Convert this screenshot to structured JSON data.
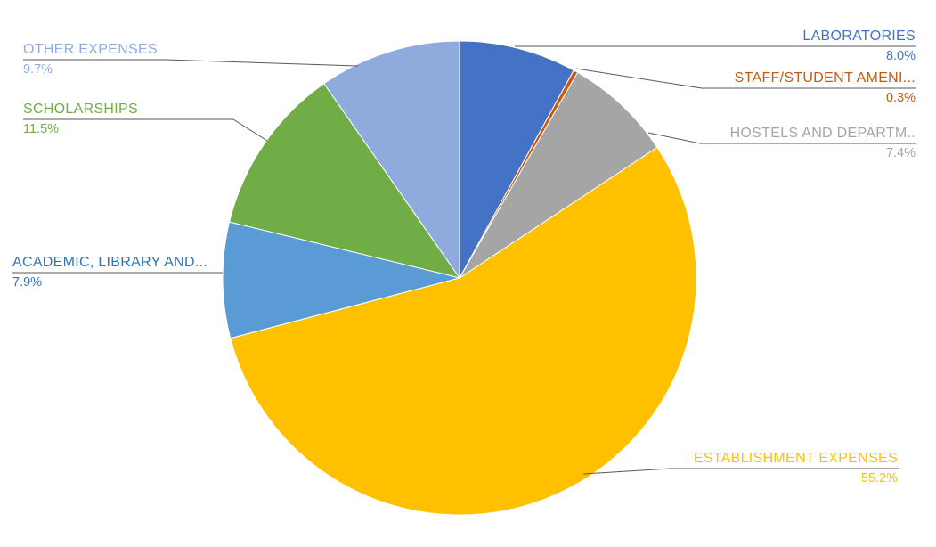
{
  "chart_data": {
    "type": "pie",
    "title": "",
    "legend_position": "none",
    "start_angle_deg": 0,
    "direction": "clockwise",
    "background_color": "#FFFFFF",
    "leader_line_color": "#595959",
    "slices": [
      {
        "label": "LABORATORIES",
        "pct_label": "8.0%",
        "value": 8.0,
        "color": "#4472C4",
        "label_color": "#4472C4"
      },
      {
        "label": "STAFF/STUDENT AMENI...",
        "pct_label": "0.3%",
        "value": 0.3,
        "color": "#C55A11",
        "label_color": "#C55A11"
      },
      {
        "label": "HOSTELS AND DEPARTM..",
        "pct_label": "7.4%",
        "value": 7.4,
        "color": "#A5A5A5",
        "label_color": "#A5A5A5"
      },
      {
        "label": "ESTABLISHMENT EXPENSES",
        "pct_label": "55.2%",
        "value": 55.2,
        "color": "#FFC000",
        "label_color": "#FFC000"
      },
      {
        "label": "ACADEMIC, LIBRARY AND...",
        "pct_label": "7.9%",
        "value": 7.9,
        "color": "#5B9BD5",
        "label_color": "#2E75B6"
      },
      {
        "label": "SCHOLARSHIPS",
        "pct_label": "11.5%",
        "value": 11.5,
        "color": "#70AD47",
        "label_color": "#70AD47"
      },
      {
        "label": "OTHER EXPENSES",
        "pct_label": "9.7%",
        "value": 9.7,
        "color": "#8FAADC",
        "label_color": "#8FAADC"
      }
    ]
  }
}
